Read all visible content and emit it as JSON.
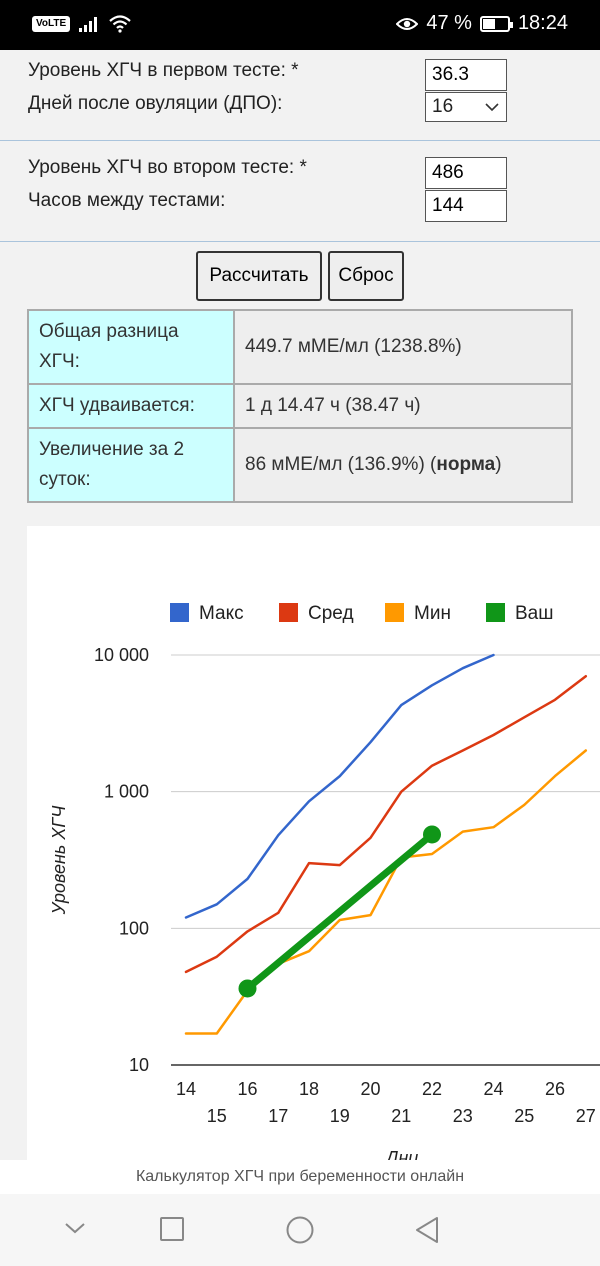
{
  "status_bar": {
    "volte": "VoLTE",
    "battery_percent": "47 %",
    "battery_level": 0.47,
    "time": "18:24"
  },
  "form": {
    "first_test": {
      "label": "Уровень ХГЧ в первом тесте: *",
      "value": "36.3"
    },
    "dpo": {
      "label": "Дней после овуляции (ДПО):",
      "value": "16"
    },
    "second_test": {
      "label": "Уровень ХГЧ во втором тесте: *",
      "value": "486"
    },
    "hours": {
      "label": "Часов между тестами:",
      "value": "144"
    },
    "calculate_label": "Рассчитать",
    "reset_label": "Сброс"
  },
  "results": [
    {
      "key": "Общая разница ХГЧ:",
      "value": "449.7 мМЕ/мл (1238.8%)"
    },
    {
      "key": "ХГЧ удваивается:",
      "value": "1 д 14.47 ч (38.47 ч)"
    },
    {
      "key": "Увеличение за 2 суток:",
      "value": "86 мМЕ/мл (136.9%) (",
      "bold": "норма",
      "tail": ")"
    }
  ],
  "chart_data": {
    "type": "line",
    "xlabel": "Дни",
    "ylabel": "Уровень ХГЧ",
    "y_scale": "log",
    "ylim": [
      10,
      10000
    ],
    "y_ticks": [
      10,
      100,
      1000,
      10000
    ],
    "y_tick_labels": [
      "10",
      "100",
      "1 000",
      "10 000"
    ],
    "xlim": [
      14,
      27
    ],
    "x_ticks": [
      14,
      15,
      16,
      17,
      18,
      19,
      20,
      21,
      22,
      23,
      24,
      25,
      26,
      27
    ],
    "x_tick_labels": [
      "14",
      "15",
      "16",
      "17",
      "18",
      "19",
      "20",
      "21",
      "22",
      "23",
      "24",
      "25",
      "26",
      "27"
    ],
    "grid": true,
    "legend": "top",
    "series": [
      {
        "name": "Макс",
        "color": "#3366cc",
        "x": [
          14,
          15,
          16,
          17,
          18,
          19,
          20,
          21,
          22,
          23,
          24
        ],
        "y": [
          120,
          150,
          230,
          480,
          850,
          1300,
          2300,
          4300,
          6000,
          8000,
          10000
        ]
      },
      {
        "name": "Сред",
        "color": "#dc3912",
        "x": [
          14,
          15,
          16,
          17,
          18,
          19,
          20,
          21,
          22,
          23,
          24,
          25,
          26,
          27
        ],
        "y": [
          48,
          62,
          95,
          130,
          300,
          290,
          460,
          1000,
          1550,
          2000,
          2600,
          3500,
          4700,
          7000
        ]
      },
      {
        "name": "Мин",
        "color": "#ff9900",
        "x": [
          14,
          15,
          16,
          17,
          18,
          19,
          20,
          21,
          22,
          23,
          24,
          25,
          26,
          27
        ],
        "y": [
          17,
          17,
          35,
          55,
          68,
          115,
          125,
          330,
          350,
          510,
          550,
          800,
          1300,
          2000
        ]
      },
      {
        "name": "Ваш",
        "color": "#109618",
        "x": [
          16,
          22
        ],
        "y": [
          36.3,
          486
        ]
      }
    ]
  },
  "footer_text": "Калькулятор ХГЧ при беременности онлайн"
}
